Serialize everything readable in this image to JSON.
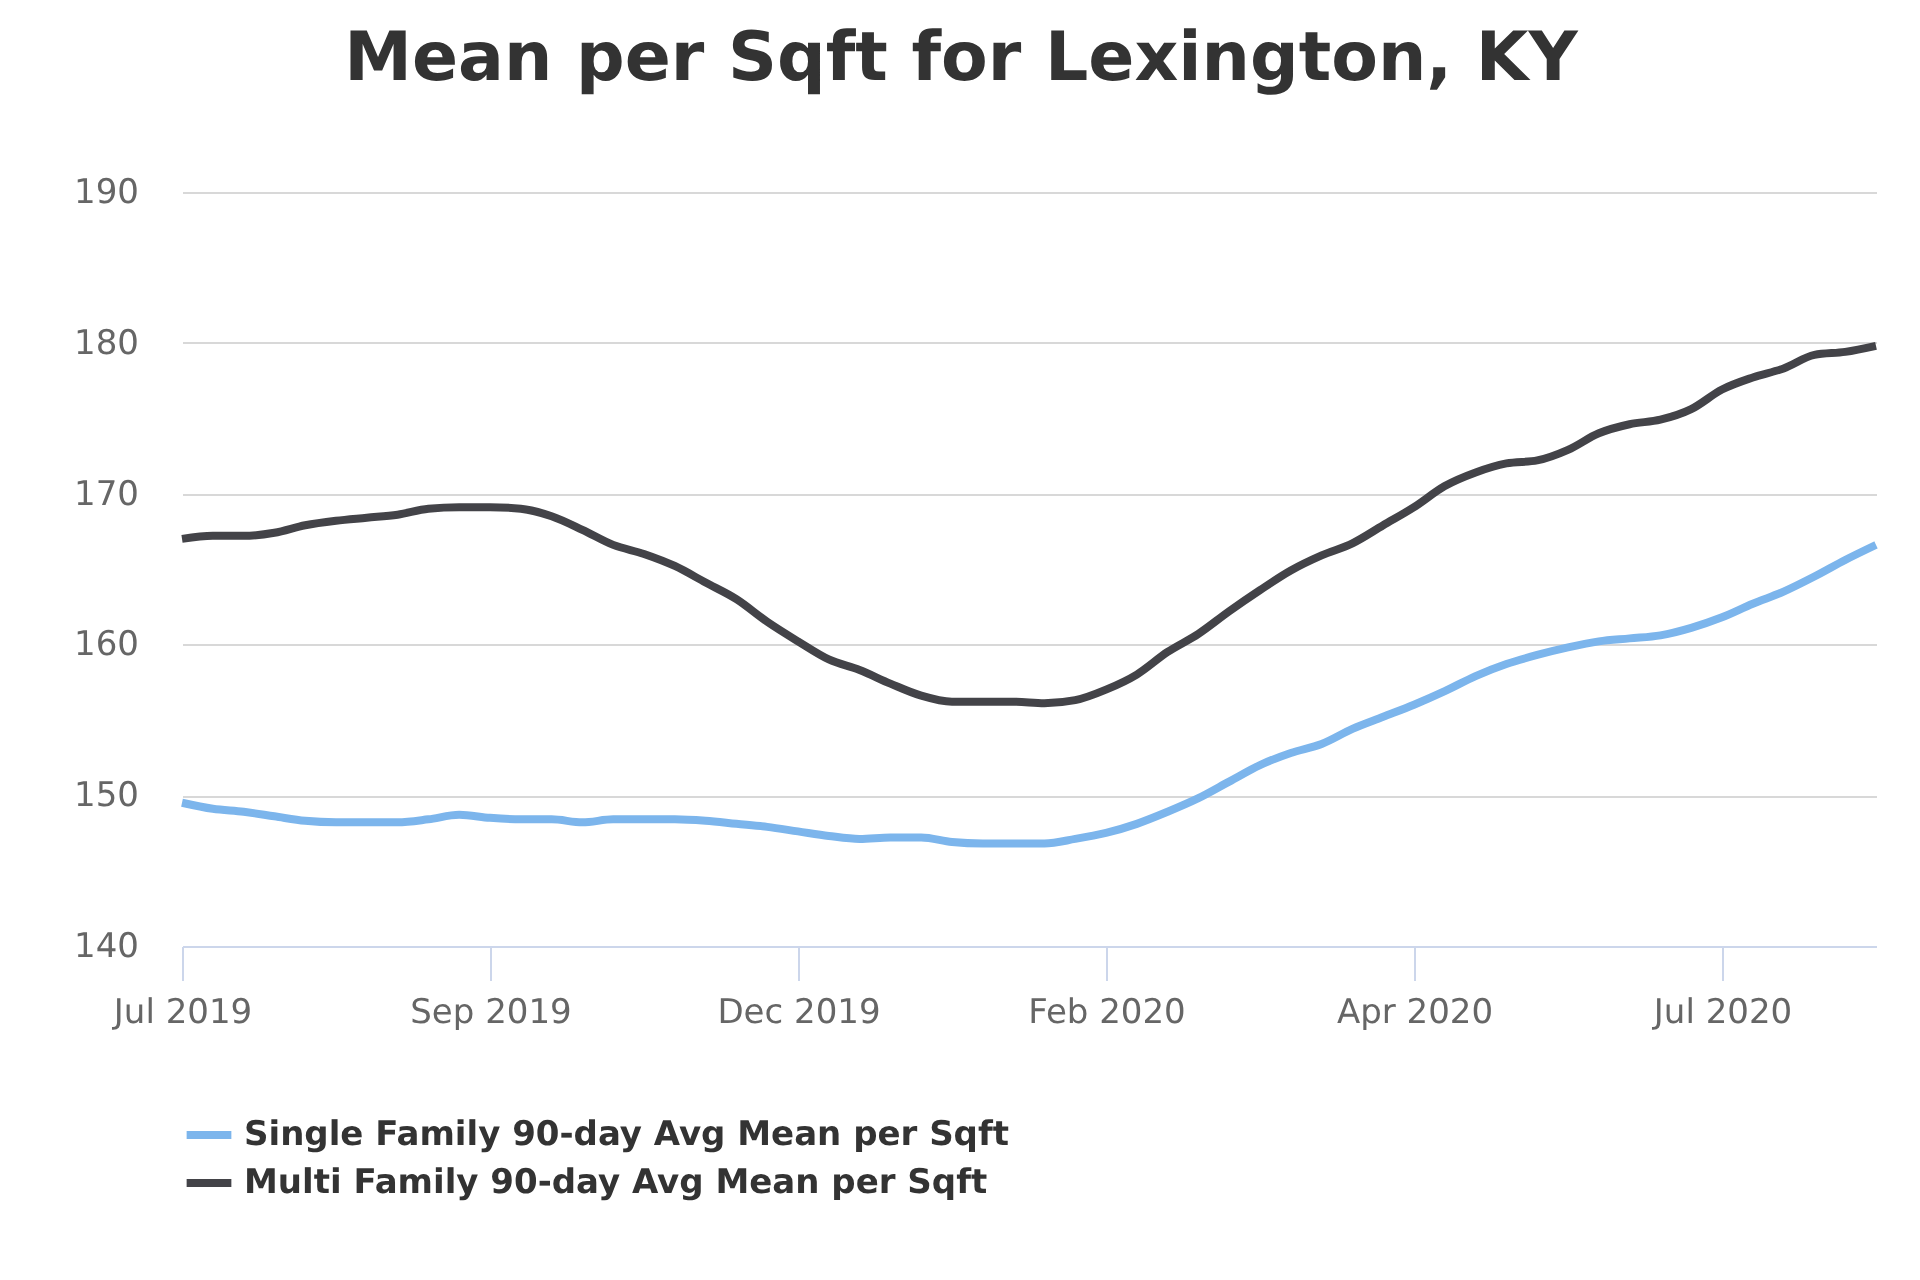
{
  "chart_data": {
    "type": "line",
    "title": "Mean per Sqft for Lexington, KY",
    "categories": [
      "Jul 2019",
      null,
      null,
      null,
      null,
      null,
      null,
      null,
      null,
      null,
      "Sep 2019",
      null,
      null,
      null,
      null,
      null,
      null,
      null,
      null,
      null,
      "Dec 2019",
      null,
      null,
      null,
      null,
      null,
      null,
      null,
      null,
      null,
      "Feb 2020",
      null,
      null,
      null,
      null,
      null,
      null,
      null,
      null,
      null,
      "Apr 2020",
      null,
      null,
      null,
      null,
      null,
      null,
      null,
      null,
      null,
      "Jul 2020",
      null,
      null,
      null,
      null,
      null
    ],
    "series": [
      {
        "name": "Single Family 90-day Avg Mean per Sqft",
        "color": "#7cb5ec",
        "values": [
          149.5,
          149.1,
          148.9,
          148.6,
          148.3,
          148.2,
          148.2,
          148.2,
          148.4,
          148.7,
          148.5,
          148.4,
          148.4,
          148.2,
          148.4,
          148.4,
          148.4,
          148.3,
          148.1,
          147.9,
          147.6,
          147.3,
          147.1,
          147.2,
          147.2,
          146.9,
          146.8,
          146.8,
          146.8,
          147.1,
          147.5,
          148.1,
          148.9,
          149.8,
          150.9,
          152.0,
          152.8,
          153.4,
          154.4,
          155.2,
          156.0,
          156.9,
          157.9,
          158.7,
          159.3,
          159.8,
          160.2,
          160.4,
          160.6,
          161.1,
          161.8,
          162.7,
          163.5,
          164.5,
          165.6,
          166.6
        ]
      },
      {
        "name": "Multi Family 90-day Avg Mean per Sqft",
        "color": "#434348",
        "values": [
          167.0,
          167.2,
          167.2,
          167.4,
          167.9,
          168.2,
          168.4,
          168.6,
          169.0,
          169.1,
          169.1,
          169.0,
          168.5,
          167.6,
          166.6,
          166.0,
          165.2,
          164.1,
          163.0,
          161.5,
          160.2,
          159.0,
          158.3,
          157.4,
          156.6,
          156.2,
          156.2,
          156.2,
          156.1,
          156.3,
          157.0,
          158.0,
          159.5,
          160.7,
          162.2,
          163.6,
          164.9,
          165.9,
          166.7,
          167.9,
          169.1,
          170.5,
          171.4,
          172.0,
          172.2,
          172.9,
          174.0,
          174.6,
          174.9,
          175.6,
          176.9,
          177.7,
          178.3,
          179.2,
          179.4,
          179.8
        ]
      }
    ],
    "ylim": [
      140,
      190
    ],
    "yticks": [
      140,
      150,
      160,
      170,
      180,
      190
    ],
    "grid": "y",
    "legend": "bottom"
  }
}
